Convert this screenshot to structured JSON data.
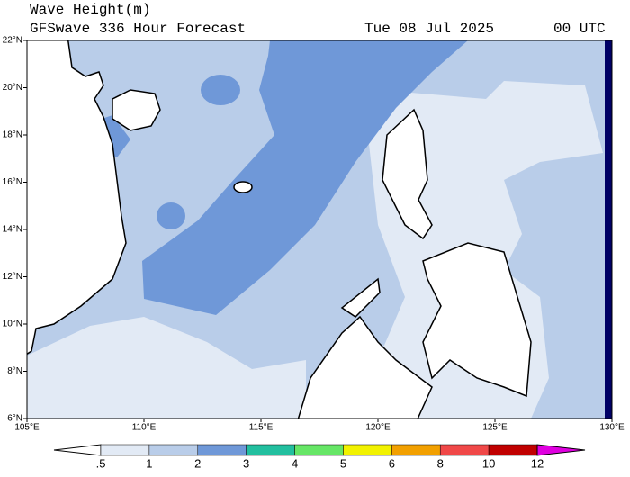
{
  "header": {
    "title": "Wave Height(m)",
    "subtitle": "GFSwave 336 Hour Forecast",
    "date": "Tue 08 Jul 2025",
    "time": "00 UTC"
  },
  "map": {
    "lat_labels": [
      "6°N",
      "8°N",
      "10°N",
      "12°N",
      "14°N",
      "16°N",
      "18°N",
      "20°N",
      "22°N"
    ],
    "lon_labels": [
      "105°E",
      "110°E",
      "115°E",
      "120°E",
      "125°E",
      "130°E"
    ]
  },
  "legend": {
    "labels": [
      ".5",
      "1",
      "2",
      "3",
      "4",
      "5",
      "6",
      "8",
      "10",
      "12"
    ],
    "colors": [
      "#ffffff",
      "#e2eaf5",
      "#b9cde9",
      "#6f98d8",
      "#22bf9f",
      "#66e666",
      "#f2f200",
      "#f2a000",
      "#f04848",
      "#c00000",
      "#e000e0"
    ]
  }
}
